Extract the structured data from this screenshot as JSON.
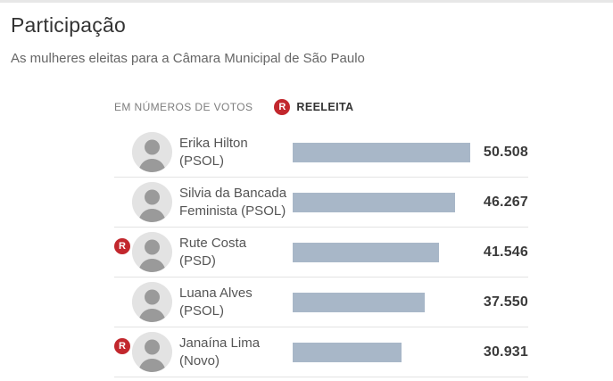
{
  "colors": {
    "bar": "#a8b7c8",
    "badge_red": "#c2272d",
    "divider": "#e3e3e3",
    "title_text": "#333333",
    "subtitle_text": "#666666"
  },
  "chart_data": {
    "type": "bar",
    "orientation": "horizontal",
    "title": "Participação",
    "subtitle": "As mulheres eleitas para a Câmara Municipal de São Paulo",
    "legend": {
      "unit_label": "EM NÚMEROS DE VOTOS",
      "badge_letter": "R",
      "badge_label": "REELEITA",
      "position": "top"
    },
    "value_axis_visible": false,
    "grid": false,
    "xlim": [
      0,
      50508
    ],
    "categories": [
      "Erika Hilton (PSOL)",
      "Silvia da Bancada Feminista (PSOL)",
      "Rute Costa (PSD)",
      "Luana Alves (PSOL)",
      "Janaína Lima (Novo)"
    ],
    "values": [
      50508,
      46267,
      41546,
      37550,
      30931
    ],
    "rows": [
      {
        "name": "Erika Hilton",
        "party": "PSOL",
        "reelected": false,
        "votes": 50508,
        "votes_label": "50.508",
        "label_lines": [
          "Erika Hilton",
          "(PSOL)"
        ]
      },
      {
        "name": "Silvia da Bancada Feminista",
        "party": "PSOL",
        "reelected": false,
        "votes": 46267,
        "votes_label": "46.267",
        "label_lines": [
          "Silvia da Bancada",
          "Feminista (PSOL)"
        ]
      },
      {
        "name": "Rute Costa",
        "party": "PSD",
        "reelected": true,
        "votes": 41546,
        "votes_label": "41.546",
        "label_lines": [
          "Rute Costa",
          "(PSD)"
        ]
      },
      {
        "name": "Luana Alves",
        "party": "PSOL",
        "reelected": false,
        "votes": 37550,
        "votes_label": "37.550",
        "label_lines": [
          "Luana Alves",
          "(PSOL)"
        ]
      },
      {
        "name": "Janaína Lima",
        "party": "Novo",
        "reelected": true,
        "votes": 30931,
        "votes_label": "30.931",
        "label_lines": [
          "Janaína Lima",
          "(Novo)"
        ]
      }
    ]
  }
}
